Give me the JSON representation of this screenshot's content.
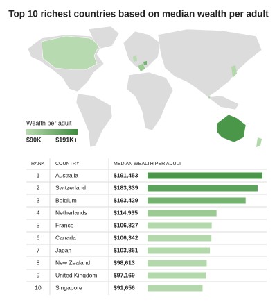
{
  "chart_data": {
    "type": "bar",
    "title": "Top 10 richest countries based on median wealth per adult",
    "columns": [
      "RANK",
      "COUNTRY",
      "MEDIAN WEALTH PER ADULT"
    ],
    "ranks": [
      1,
      2,
      3,
      4,
      5,
      6,
      7,
      8,
      9,
      10
    ],
    "categories": [
      "Australia",
      "Switzerland",
      "Belgium",
      "Netherlands",
      "France",
      "Canada",
      "Japan",
      "New Zealand",
      "United Kingdom",
      "Singapore"
    ],
    "values": [
      191453,
      183339,
      163429,
      114935,
      106827,
      106342,
      103861,
      98613,
      97169,
      91656
    ],
    "value_labels": [
      "$191,453",
      "$183,339",
      "$163,429",
      "$114,935",
      "$106,827",
      "$106,342",
      "$103,861",
      "$98,613",
      "$97,169",
      "$91,656"
    ],
    "colors": [
      "#4a974a",
      "#5aa35a",
      "#74b270",
      "#9bcb93",
      "#b3d8ab",
      "#b3d8ab",
      "#b3d8ab",
      "#b3d8ab",
      "#b3d8ab",
      "#b3d8ab"
    ],
    "legend": {
      "title": "Wealth per adult",
      "low": "$90K",
      "high": "$191K+",
      "low_color": "#b8dab0",
      "high_color": "#3f8c3f"
    }
  }
}
